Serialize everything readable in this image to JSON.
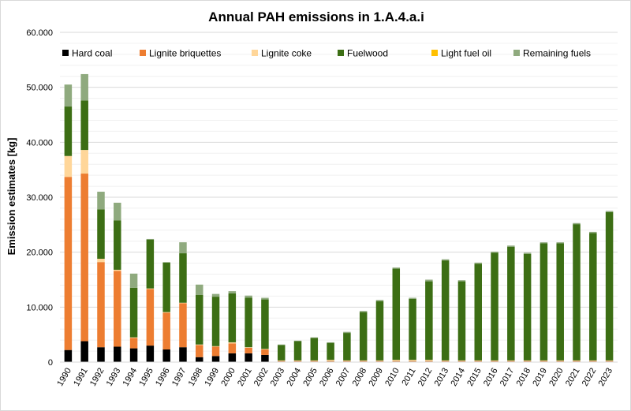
{
  "chart_data": {
    "type": "bar",
    "stacked": true,
    "title": "Annual PAH emissions in 1.A.4.a.i",
    "xlabel": "",
    "ylabel": "Emission estimates [kg]",
    "ylim": [
      0,
      60000
    ],
    "yticks": [
      "0",
      "10.000",
      "20.000",
      "30.000",
      "40.000",
      "50.000",
      "60.000"
    ],
    "ytick_values": [
      0,
      10000,
      20000,
      30000,
      40000,
      50000,
      60000
    ],
    "grid": true,
    "legend_position": "top",
    "categories": [
      "1990",
      "1991",
      "1992",
      "1993",
      "1994",
      "1995",
      "1996",
      "1997",
      "1998",
      "1999",
      "2000",
      "2001",
      "2002",
      "2003",
      "2004",
      "2005",
      "2006",
      "2007",
      "2008",
      "2009",
      "2010",
      "2011",
      "2012",
      "2013",
      "2014",
      "2015",
      "2016",
      "2017",
      "2018",
      "2019",
      "2020",
      "2021",
      "2022",
      "2023"
    ],
    "series": [
      {
        "name": "Hard coal",
        "color": "#000000",
        "values": [
          2200,
          3800,
          2700,
          2800,
          2500,
          3000,
          2300,
          2700,
          900,
          1100,
          1600,
          1600,
          1300,
          100,
          100,
          100,
          100,
          100,
          100,
          100,
          100,
          100,
          100,
          100,
          100,
          100,
          100,
          100,
          100,
          100,
          100,
          100,
          100,
          100
        ]
      },
      {
        "name": "Lignite briquettes",
        "color": "#ed7d31",
        "values": [
          31500,
          30500,
          15500,
          13800,
          1900,
          10300,
          6700,
          8000,
          2200,
          1700,
          1800,
          1000,
          1000,
          100,
          100,
          100,
          100,
          100,
          100,
          100,
          100,
          100,
          100,
          100,
          100,
          100,
          100,
          100,
          100,
          100,
          100,
          100,
          100,
          100
        ]
      },
      {
        "name": "Lignite coke",
        "color": "#ffd699",
        "values": [
          3800,
          4300,
          600,
          200,
          100,
          100,
          100,
          100,
          100,
          100,
          200,
          100,
          100,
          100,
          100,
          100,
          200,
          100,
          100,
          100,
          200,
          200,
          200,
          100,
          100,
          100,
          100,
          100,
          100,
          100,
          100,
          100,
          100,
          100
        ]
      },
      {
        "name": "Fuelwood",
        "color": "#3c6e14",
        "values": [
          9000,
          9000,
          9000,
          9000,
          9000,
          8900,
          9000,
          9000,
          9000,
          9000,
          8900,
          9000,
          9000,
          2800,
          3500,
          4100,
          3100,
          5000,
          8800,
          10800,
          16600,
          11100,
          14300,
          18200,
          14400,
          17600,
          19600,
          20700,
          19400,
          21300,
          21300,
          24800,
          23200,
          27000
        ]
      },
      {
        "name": "Light fuel oil",
        "color": "#ffc000",
        "values": [
          0,
          0,
          0,
          0,
          0,
          0,
          0,
          0,
          0,
          0,
          0,
          0,
          0,
          0,
          0,
          0,
          0,
          0,
          0,
          0,
          0,
          0,
          0,
          0,
          0,
          0,
          0,
          0,
          0,
          0,
          0,
          0,
          0,
          0
        ]
      },
      {
        "name": "Remaining fuels",
        "color": "#8faa7e",
        "values": [
          4000,
          4800,
          3200,
          3200,
          2600,
          100,
          100,
          2000,
          1900,
          500,
          400,
          400,
          300,
          100,
          100,
          100,
          100,
          200,
          200,
          200,
          200,
          200,
          300,
          200,
          200,
          200,
          200,
          200,
          200,
          200,
          200,
          200,
          200,
          200
        ]
      }
    ]
  }
}
